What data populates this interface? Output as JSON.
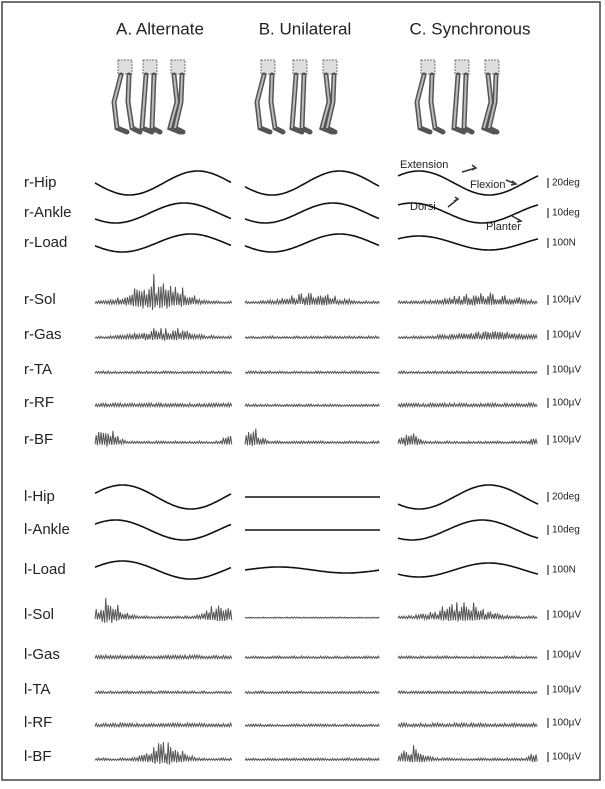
{
  "columns": [
    "A. Alternate",
    "B. Unilateral",
    "C. Synchronous"
  ],
  "rows": [
    {
      "label": "r-Hip",
      "scale": "20deg"
    },
    {
      "label": "r-Ankle",
      "scale": "10deg"
    },
    {
      "label": "r-Load",
      "scale": "100N"
    },
    {
      "label": "r-Sol",
      "scale": "100µV"
    },
    {
      "label": "r-Gas",
      "scale": "100µV"
    },
    {
      "label": "r-TA",
      "scale": "100µV"
    },
    {
      "label": "r-RF",
      "scale": "100µV"
    },
    {
      "label": "r-BF",
      "scale": "100µV"
    },
    {
      "label": "l-Hip",
      "scale": "20deg"
    },
    {
      "label": "l-Ankle",
      "scale": "10deg"
    },
    {
      "label": "l-Load",
      "scale": "100N"
    },
    {
      "label": "l-Sol",
      "scale": "100µV"
    },
    {
      "label": "l-Gas",
      "scale": "100µV"
    },
    {
      "label": "l-TA",
      "scale": "100µV"
    },
    {
      "label": "l-RF",
      "scale": "100µV"
    },
    {
      "label": "l-BF",
      "scale": "100µV"
    }
  ],
  "annotations": [
    "Extension",
    "Flexion",
    "Dorsi",
    "Planter"
  ]
}
